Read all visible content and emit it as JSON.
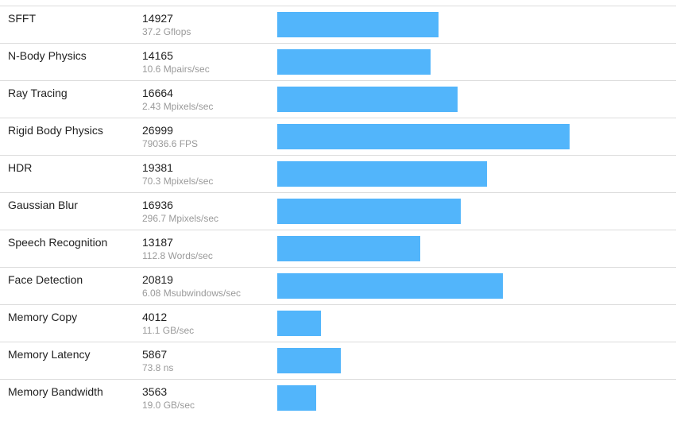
{
  "chart_data": {
    "type": "bar",
    "orientation": "horizontal",
    "bar_color": "#52b5fb",
    "categories": [
      "SFFT",
      "N-Body Physics",
      "Ray Tracing",
      "Rigid Body Physics",
      "HDR",
      "Gaussian Blur",
      "Speech Recognition",
      "Face Detection",
      "Memory Copy",
      "Memory Latency",
      "Memory Bandwidth"
    ],
    "values": [
      14927,
      14165,
      16664,
      26999,
      19381,
      16936,
      13187,
      20819,
      4012,
      5867,
      3563
    ],
    "details": [
      "37.2 Gflops",
      "10.6 Mpairs/sec",
      "2.43 Mpixels/sec",
      "79036.6 FPS",
      "70.3 Mpixels/sec",
      "296.7 Mpixels/sec",
      "112.8 Words/sec",
      "6.08 Msubwindows/sec",
      "11.1 GB/sec",
      "73.8 ns",
      "19.0 GB/sec"
    ],
    "xlim": [
      0,
      36700
    ]
  }
}
